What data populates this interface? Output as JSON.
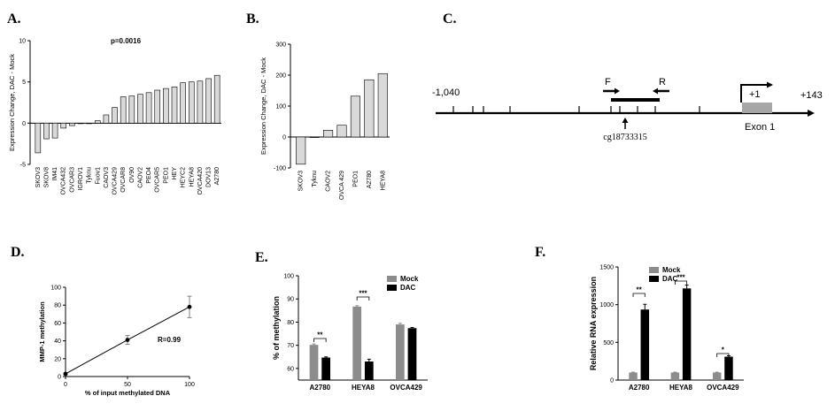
{
  "panel_labels": {
    "a": "A.",
    "b": "B.",
    "c": "C.",
    "d": "D.",
    "e": "E.",
    "f": "F."
  },
  "gene_map": {
    "start_label": "-1,040",
    "end_label": "+143",
    "forward_primer": "F",
    "reverse_primer": "R",
    "tss_label": "+1",
    "cpg_label": "cg18733315",
    "exon_label": "Exon 1",
    "exon_color": "#a6a6a6"
  },
  "chart_data": [
    {
      "id": "A",
      "type": "bar",
      "title": "",
      "annotation": "p=0.0016",
      "ylabel": "Expression Change, DAC - Mock",
      "xlabel": "",
      "ylim": [
        -5,
        10
      ],
      "yticks": [
        -5,
        0,
        5,
        10
      ],
      "bar_color": "#d9d9d9",
      "categories": [
        "SKOV3",
        "SKOV8",
        "IM41",
        "OVCA432",
        "OVCAR3",
        "IGROV1",
        "Tyknu",
        "Fuov1",
        "CAOV3",
        "OVCA429",
        "OVCAR8",
        "OV90",
        "CAOV2",
        "PEO4",
        "OVCAR5",
        "PEO1",
        "HEY",
        "HEYC2",
        "HEYA8",
        "OVCA420",
        "DOV13",
        "A2780"
      ],
      "values": [
        -3.6,
        -1.9,
        -1.8,
        -0.6,
        -0.3,
        0,
        0,
        0.3,
        1.0,
        1.9,
        3.2,
        3.3,
        3.5,
        3.7,
        4.0,
        4.2,
        4.4,
        4.9,
        5.0,
        5.1,
        5.4,
        5.8
      ]
    },
    {
      "id": "B",
      "type": "bar",
      "title": "",
      "ylabel": "Expression Change, DAC - Mock",
      "xlabel": "",
      "ylim": [
        -100,
        300
      ],
      "yticks": [
        -100,
        0,
        100,
        200,
        300
      ],
      "bar_color": "#d9d9d9",
      "categories": [
        "SKOV3",
        "Tyknu",
        "CAOV2",
        "OVCA 429",
        "PEO1",
        "A2780",
        "HEYA8"
      ],
      "values": [
        -88,
        0,
        22,
        38,
        132,
        185,
        205
      ]
    },
    {
      "id": "D",
      "type": "line",
      "title": "",
      "ylabel": "MMP-1 methylation",
      "xlabel": "% of input methylated DNA",
      "annotation": "R=0.99",
      "xlim": [
        0,
        100
      ],
      "ylim": [
        0,
        100
      ],
      "xticks": [
        0,
        50,
        100
      ],
      "yticks": [
        0,
        20,
        40,
        60,
        80,
        100
      ],
      "x": [
        0,
        50,
        100
      ],
      "y": [
        3,
        41,
        78
      ],
      "err": [
        1,
        5,
        12
      ]
    },
    {
      "id": "E",
      "type": "bar",
      "title": "",
      "ylabel": "% of methylation",
      "xlabel": "",
      "ylim": [
        55,
        100
      ],
      "yticks": [
        60,
        70,
        80,
        90,
        100
      ],
      "categories": [
        "A2780",
        "HEYA8",
        "OVCA429"
      ],
      "series": [
        {
          "name": "Mock",
          "color": "#8c8c8c",
          "values": [
            70.2,
            86.7,
            79
          ],
          "err": [
            0.4,
            0.4,
            0.5
          ]
        },
        {
          "name": "DAC",
          "color": "#000000",
          "values": [
            64.7,
            63,
            77.4
          ],
          "err": [
            0.3,
            1,
            0.3
          ]
        }
      ],
      "significance": [
        "**",
        "***",
        ""
      ],
      "legend_position": "top-right"
    },
    {
      "id": "F",
      "type": "bar",
      "title": "",
      "ylabel": "Relative RNA expression",
      "xlabel": "",
      "ylim": [
        0,
        1500
      ],
      "yticks": [
        0,
        500,
        1000,
        1500
      ],
      "categories": [
        "A2780",
        "HEYA8",
        "OVCA429"
      ],
      "series": [
        {
          "name": "Mock",
          "color": "#8c8c8c",
          "values": [
            100,
            100,
            100
          ],
          "err": [
            5,
            5,
            5
          ]
        },
        {
          "name": "DAC",
          "color": "#000000",
          "values": [
            935,
            1215,
            310
          ],
          "err": [
            70,
            45,
            12
          ]
        }
      ],
      "significance": [
        "**",
        "***",
        "*"
      ],
      "legend_position": "top-right"
    }
  ]
}
